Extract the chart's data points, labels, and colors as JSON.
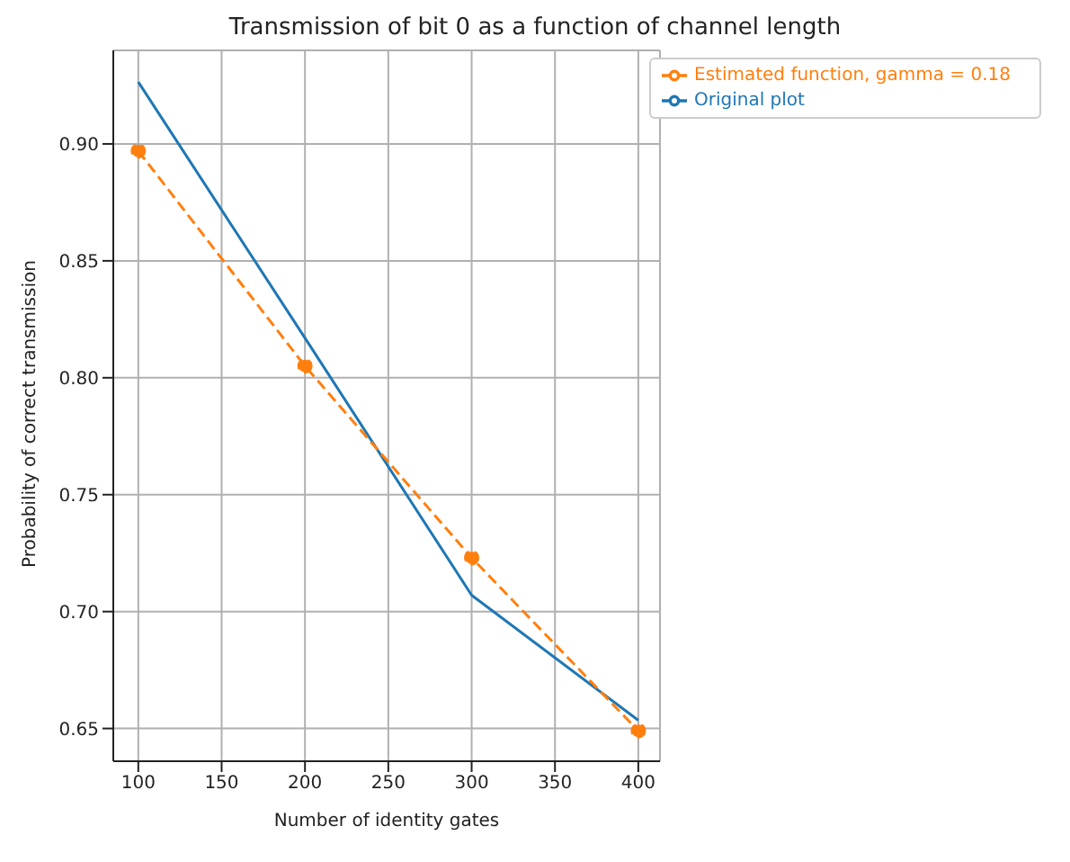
{
  "chart_data": {
    "type": "line",
    "title": "Transmission of bit 0 as a function of channel length",
    "xlabel": "Number of identity gates",
    "ylabel": "Probability of correct transmission",
    "x": [
      100,
      200,
      300,
      400
    ],
    "series": [
      {
        "name": "Original plot",
        "color": "#1f77b4",
        "values": [
          0.9265,
          0.817,
          0.707,
          0.6535
        ],
        "marker": "none",
        "line_style": "solid"
      },
      {
        "name": "Estimated function, gamma = 0.18",
        "color": "#ff7f0e",
        "values": [
          0.897,
          0.805,
          0.723,
          0.649
        ],
        "marker": "circle",
        "line_style": "dashed"
      }
    ],
    "xlim": [
      85,
      413
    ],
    "xticks": [
      100,
      150,
      200,
      250,
      300,
      350,
      400
    ],
    "ylim": [
      0.636,
      0.94
    ],
    "yticks": [
      {
        "value": 0.65,
        "label": "0.65"
      },
      {
        "value": 0.7,
        "label": "0.70"
      },
      {
        "value": 0.75,
        "label": "0.75"
      },
      {
        "value": 0.8,
        "label": "0.80"
      },
      {
        "value": 0.85,
        "label": "0.85"
      },
      {
        "value": 0.9,
        "label": "0.90"
      }
    ],
    "grid": true,
    "legend": "top right"
  }
}
